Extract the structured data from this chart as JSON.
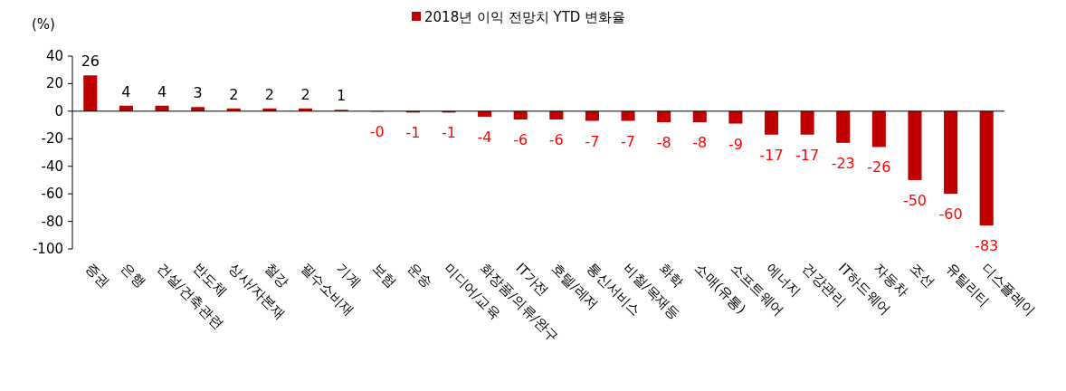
{
  "chart_data": {
    "type": "bar",
    "ylabel": "(%)",
    "legend": "top",
    "ylim": [
      -100,
      40
    ],
    "yticks": [
      -100,
      -80,
      -60,
      -40,
      -20,
      0,
      20,
      40
    ],
    "categories": [
      "증권",
      "은행",
      "건설/건축관련",
      "반도체",
      "상사/자본재",
      "철강",
      "필수소비재",
      "기계",
      "보험",
      "운송",
      "미디어/교육",
      "화장품/의류/완구",
      "IT가전",
      "호텔/레저",
      "통신서비스",
      "비철/목재등",
      "화학",
      "소매(유통)",
      "소프트웨어",
      "에너지",
      "건강관리",
      "IT하드웨어",
      "자동차",
      "조선",
      "유틸리티",
      "디스플레이"
    ],
    "series": [
      {
        "name": "2018년 이익 전망치 YTD 변화율",
        "color": "#c00000",
        "values": [
          26,
          4,
          4,
          3,
          2,
          2,
          2,
          1,
          -0.3,
          -1,
          -1,
          -4,
          -6,
          -6,
          -7,
          -7,
          -8,
          -8,
          -9,
          -17,
          -17,
          -23,
          -26,
          -50,
          -60,
          -83
        ],
        "value_labels": [
          "26",
          "4",
          "4",
          "3",
          "2",
          "2",
          "2",
          "1",
          "-0",
          "-1",
          "-1",
          "-4",
          "-6",
          "-6",
          "-7",
          "-7",
          "-8",
          "-8",
          "-9",
          "-17",
          "-17",
          "-23",
          "-26",
          "-50",
          "-60",
          "-83"
        ]
      }
    ]
  }
}
